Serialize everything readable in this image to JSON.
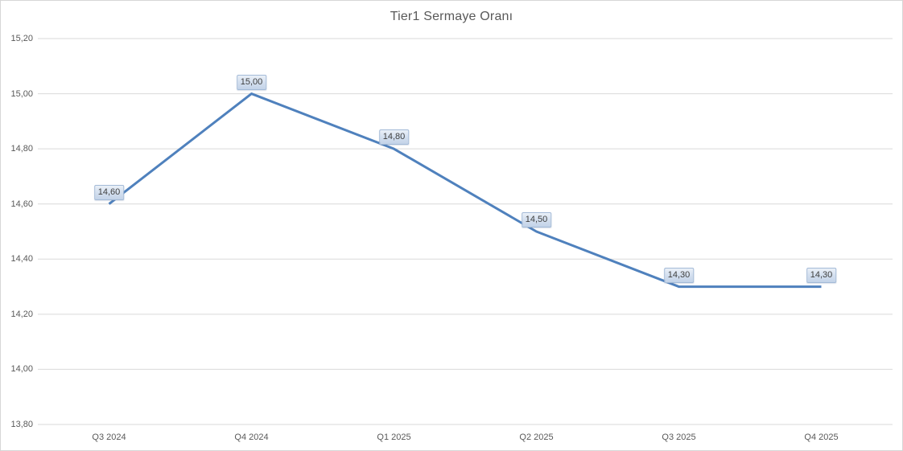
{
  "chart_data": {
    "type": "line",
    "title": "Tier1 Sermaye Oranı",
    "categories": [
      "Q3 2024",
      "Q4 2024",
      "Q1 2025",
      "Q2 2025",
      "Q3 2025",
      "Q4 2025"
    ],
    "series": [
      {
        "name": "Tier1 Sermaye Oranı",
        "values": [
          14.6,
          15.0,
          14.8,
          14.5,
          14.3,
          14.3
        ],
        "point_labels": [
          "14,60",
          "15,00",
          "14,80",
          "14,50",
          "14,30",
          "14,30"
        ]
      }
    ],
    "xlabel": "",
    "ylabel": "",
    "ylim": [
      13.8,
      15.2
    ],
    "y_tick_values": [
      15.2,
      15.0,
      14.8,
      14.6,
      14.4,
      14.2,
      14.0,
      13.8
    ],
    "y_tick_labels": [
      "15,20",
      "15,00",
      "14,80",
      "14,60",
      "14,40",
      "14,20",
      "14,00",
      "13,80"
    ],
    "grid": "horizontal",
    "legend_position": "none",
    "decimal_separator": ","
  },
  "colors": {
    "line": "#4f81bd",
    "gridline": "#d9d9d9",
    "axis_text": "#595959",
    "title_text": "#595959",
    "label_box_border": "#a3bad7",
    "label_box_fill_top": "#eaf0f8",
    "label_box_fill_bottom": "#c3d3e8",
    "frame_border": "#d6d6d6",
    "background": "#ffffff"
  }
}
